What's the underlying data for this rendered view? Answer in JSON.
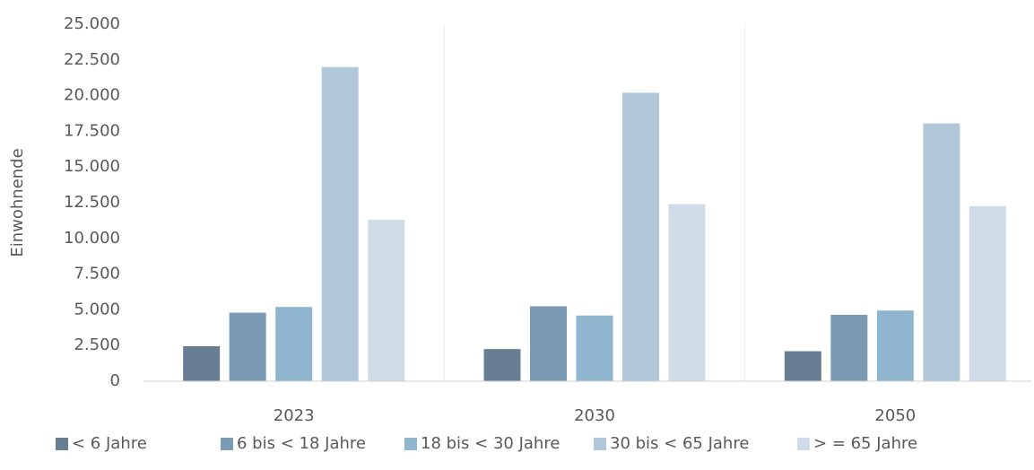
{
  "chart_data": {
    "type": "bar",
    "y_axis_label": "Einwohnende",
    "categories": [
      "2023",
      "2030",
      "2050"
    ],
    "series": [
      {
        "name": "< 6 Jahre",
        "color": "#687f93",
        "values": [
          2450,
          2250,
          2100
        ]
      },
      {
        "name": "6 bis < 18 Jahre",
        "color": "#7b9bb4",
        "values": [
          4800,
          5250,
          4650
        ]
      },
      {
        "name": "18 bis < 30 Jahre",
        "color": "#8fb5cf",
        "values": [
          5200,
          4600,
          4950
        ]
      },
      {
        "name": "30 bis < 65 Jahre",
        "color": "#b1c8da",
        "values": [
          22000,
          20200,
          18050
        ]
      },
      {
        "name": "> = 65 Jahre",
        "color": "#cfdbe7",
        "values": [
          11300,
          12400,
          12250
        ]
      }
    ],
    "ylim": [
      0,
      25000
    ],
    "yticks": [
      0,
      {
        "value": 2500,
        "label": "2.500"
      },
      {
        "value": 5000,
        "label": "5.000"
      },
      {
        "value": 7500,
        "label": "7.500"
      },
      {
        "value": 10000,
        "label": "10.000"
      },
      {
        "value": 12500,
        "label": "12.500"
      },
      {
        "value": 15000,
        "label": "15.000"
      },
      {
        "value": 17500,
        "label": "17.500"
      },
      {
        "value": 20000,
        "label": "20.000"
      },
      {
        "value": 22500,
        "label": "22.500"
      },
      {
        "value": 25000,
        "label": "25.000"
      }
    ],
    "grid": false,
    "legend": "bottom"
  }
}
